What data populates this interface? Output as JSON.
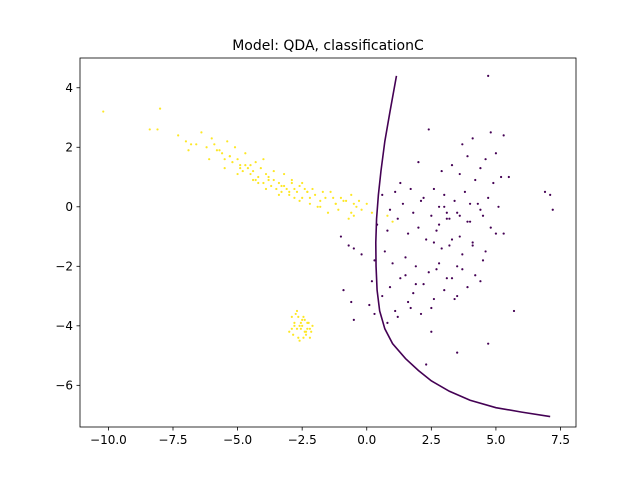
{
  "chart_data": {
    "type": "scatter",
    "title": "Model: QDA, classificationC",
    "xlabel": "",
    "ylabel": "",
    "xlim": [
      -11.1,
      8.1
    ],
    "ylim": [
      -7.4,
      5.0
    ],
    "x_ticks": [
      -10.0,
      -7.5,
      -5.0,
      -2.5,
      0.0,
      2.5,
      5.0,
      7.5
    ],
    "x_tick_labels": [
      "−10.0",
      "−7.5",
      "−5.0",
      "−2.5",
      "0.0",
      "2.5",
      "5.0",
      "7.5"
    ],
    "y_ticks": [
      4,
      2,
      0,
      -2,
      -4,
      -6
    ],
    "y_tick_labels": [
      "4",
      "2",
      "0",
      "−2",
      "−4",
      "−6"
    ],
    "grid": false,
    "legend": "none",
    "colors": {
      "class_0": "#440154",
      "class_1": "#fde725",
      "boundary": "#440154"
    },
    "decision_boundary": {
      "x": [
        1.15,
        0.9,
        0.7,
        0.55,
        0.45,
        0.38,
        0.35,
        0.36,
        0.4,
        0.5,
        0.7,
        1.0,
        1.5,
        2.0,
        2.5,
        3.2,
        4.0,
        5.0,
        6.0,
        7.1
      ],
      "y": [
        4.4,
        3.2,
        2.2,
        1.2,
        0.4,
        -0.4,
        -1.2,
        -2.0,
        -2.8,
        -3.5,
        -4.1,
        -4.6,
        -5.1,
        -5.5,
        -5.85,
        -6.2,
        -6.5,
        -6.75,
        -6.9,
        -7.05
      ]
    },
    "series": [
      {
        "class": 1,
        "x": [
          -10.2,
          -8.0,
          -8.4,
          -8.1,
          -7.3,
          -7.0,
          -6.8,
          -6.9,
          -6.2,
          -6.0,
          -5.8,
          -5.6,
          -5.5,
          -5.3,
          -5.2,
          -5.0,
          -4.9,
          -4.8,
          -4.7,
          -4.6,
          -4.5,
          -4.4,
          -4.3,
          -4.2,
          -4.1,
          -4.0,
          -3.9,
          -3.8,
          -3.7,
          -3.6,
          -3.5,
          -3.4,
          -3.3,
          -3.2,
          -3.1,
          -3.0,
          -2.9,
          -2.8,
          -2.7,
          -2.6,
          -2.5,
          -2.4,
          -2.3,
          -2.2,
          -2.0,
          -1.8,
          -1.6,
          -1.4,
          -1.2,
          -1.0,
          -0.8,
          -0.6,
          -0.5,
          -0.4,
          -0.3,
          -0.2,
          0.0,
          0.2,
          -5.4,
          -5.1,
          -4.7,
          -4.3,
          -4.0,
          -3.6,
          -3.2,
          -2.9,
          -2.5,
          -2.1,
          -1.7,
          -1.3,
          -0.9,
          -0.5,
          -6.4,
          -5.9,
          -5.7,
          -5.3,
          -4.9,
          -4.5,
          -4.2,
          -3.8,
          -3.4,
          -3.0,
          -2.6,
          -2.2,
          -1.9,
          -1.5,
          -1.1,
          -0.7,
          -6.6,
          -6.1,
          -5.5,
          -5.0,
          -4.4,
          -3.9,
          -3.3,
          -2.8,
          -2.3,
          -1.8,
          -1.2,
          -0.6,
          0.8,
          1.0,
          -2.9,
          -2.8,
          -2.7,
          -2.6,
          -2.5,
          -2.4,
          -2.3,
          -2.2,
          -2.1,
          -3.0,
          -2.85,
          -2.75,
          -2.65,
          -2.55,
          -2.45,
          -2.35,
          -2.25,
          -2.15,
          -2.7,
          -2.6,
          -2.5,
          -2.4,
          -2.3,
          -2.8,
          -2.55,
          -2.45,
          -2.35,
          -2.65,
          -2.9,
          -2.2
        ],
        "y": [
          3.2,
          3.3,
          2.6,
          2.6,
          2.4,
          2.2,
          2.1,
          1.9,
          2.0,
          2.3,
          1.9,
          1.8,
          1.6,
          1.7,
          1.5,
          1.6,
          1.4,
          1.2,
          1.4,
          1.3,
          1.1,
          1.2,
          0.9,
          1.0,
          1.3,
          0.8,
          1.1,
          1.0,
          0.7,
          0.9,
          0.6,
          0.8,
          0.5,
          0.7,
          0.6,
          0.4,
          0.8,
          0.6,
          0.5,
          0.7,
          0.3,
          0.6,
          0.5,
          0.3,
          0.4,
          0.2,
          0.3,
          0.5,
          0.1,
          0.3,
          0.2,
          0.4,
          0.1,
          0.0,
          0.2,
          -0.1,
          0.1,
          -0.2,
          2.2,
          2.0,
          1.8,
          1.5,
          1.6,
          1.2,
          1.1,
          0.9,
          0.8,
          0.6,
          0.5,
          0.3,
          0.2,
          -0.3,
          2.5,
          2.1,
          1.9,
          1.7,
          1.3,
          1.4,
          0.8,
          0.9,
          0.4,
          0.5,
          0.2,
          0.1,
          0.0,
          -0.2,
          -0.1,
          -0.4,
          2.1,
          1.6,
          1.3,
          1.1,
          0.9,
          0.6,
          0.7,
          0.3,
          0.5,
          0.0,
          0.1,
          -0.2,
          -0.3,
          -0.5,
          -3.7,
          -3.9,
          -4.1,
          -4.0,
          -3.8,
          -4.2,
          -3.9,
          -4.1,
          -4.0,
          -4.2,
          -4.3,
          -3.6,
          -4.4,
          -4.1,
          -3.7,
          -4.3,
          -3.9,
          -4.2,
          -3.5,
          -4.5,
          -4.0,
          -3.8,
          -4.1,
          -4.0,
          -3.9,
          -4.4,
          -4.2,
          -3.7,
          -4.1,
          -4.4
        ],
        "color": "#fde725"
      },
      {
        "class": 0,
        "x": [
          4.7,
          2.4,
          4.8,
          5.3,
          3.7,
          4.1,
          3.9,
          4.6,
          5.0,
          5.5,
          2.0,
          2.9,
          3.3,
          3.6,
          4.2,
          4.4,
          4.9,
          5.2,
          1.1,
          1.3,
          1.7,
          2.2,
          2.6,
          3.0,
          3.4,
          3.8,
          4.3,
          4.7,
          5.1,
          6.9,
          7.1,
          7.2,
          0.6,
          0.9,
          1.4,
          1.8,
          2.1,
          2.5,
          2.8,
          3.1,
          3.5,
          3.9,
          4.0,
          4.5,
          4.8,
          5.3,
          0.4,
          0.8,
          1.2,
          1.6,
          2.0,
          2.3,
          2.7,
          3.2,
          3.6,
          4.1,
          4.6,
          5.0,
          -1.0,
          -0.7,
          -0.2,
          0.3,
          0.7,
          1.0,
          1.5,
          1.9,
          2.4,
          2.8,
          3.3,
          3.7,
          4.2,
          -0.5,
          0.2,
          0.9,
          1.3,
          1.8,
          2.2,
          2.6,
          3.0,
          3.5,
          3.9,
          4.4,
          -0.9,
          -0.6,
          0.1,
          0.6,
          1.1,
          1.6,
          2.1,
          2.5,
          3.4,
          -0.5,
          0.3,
          0.8,
          1.2,
          1.7,
          2.5,
          3.5,
          4.7,
          5.7,
          2.3,
          3.1,
          3.0,
          2.8,
          3.2,
          3.6,
          4.0,
          4.4,
          2.6,
          2.9,
          3.3,
          3.7,
          4.1,
          4.5,
          1.5,
          1.9,
          2.7,
          3.1,
          3.5
        ],
        "y": [
          4.4,
          2.6,
          2.5,
          2.4,
          2.1,
          2.3,
          1.7,
          1.6,
          1.8,
          1.0,
          1.5,
          1.2,
          1.4,
          1.1,
          0.9,
          1.3,
          0.8,
          1.0,
          0.5,
          0.8,
          0.6,
          0.3,
          0.6,
          0.4,
          0.2,
          0.5,
          0.1,
          0.3,
          0.0,
          0.5,
          0.4,
          -0.1,
          0.4,
          -0.1,
          0.1,
          -0.2,
          0.2,
          -0.3,
          0.0,
          -0.4,
          -0.2,
          -0.5,
          0.1,
          -0.3,
          -0.7,
          -0.9,
          -0.6,
          -0.8,
          -0.4,
          -0.9,
          -0.7,
          -1.1,
          -0.8,
          -1.3,
          -1.0,
          -1.2,
          -1.5,
          -0.9,
          -1.0,
          -1.3,
          -1.6,
          -1.8,
          -1.5,
          -1.9,
          -1.7,
          -2.0,
          -2.2,
          -1.9,
          -2.4,
          -2.1,
          -2.3,
          -1.4,
          -2.5,
          -2.7,
          -2.4,
          -2.9,
          -2.6,
          -3.1,
          -2.8,
          -3.0,
          -2.7,
          -2.5,
          -2.8,
          -3.2,
          -3.3,
          -3.0,
          -3.5,
          -3.2,
          -3.6,
          -3.4,
          -3.1,
          -3.8,
          -3.6,
          -3.9,
          -3.7,
          -3.4,
          -4.2,
          -4.9,
          -4.6,
          -3.5,
          -5.3,
          -0.2,
          0.0,
          -0.6,
          -0.4,
          -0.3,
          -0.5,
          -0.1,
          -1.2,
          -1.4,
          -1.1,
          -1.6,
          -1.3,
          -1.8,
          -2.3,
          -2.6,
          -2.1,
          -2.4,
          -2.0
        ],
        "color": "#440154"
      }
    ]
  }
}
